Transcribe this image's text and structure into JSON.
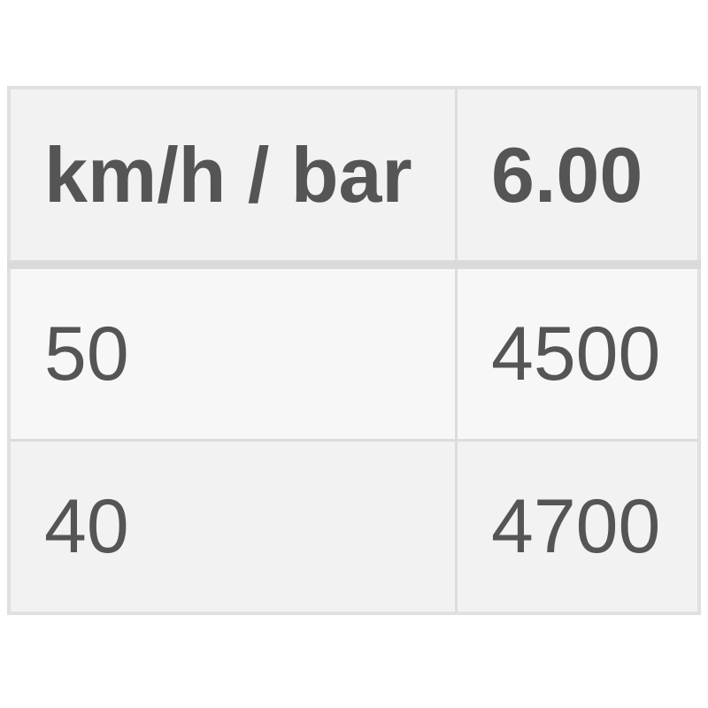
{
  "table": {
    "headers": [
      "km/h / bar",
      "6.00"
    ],
    "rows": [
      [
        "50",
        "4500"
      ],
      [
        "40",
        "4700"
      ]
    ]
  }
}
